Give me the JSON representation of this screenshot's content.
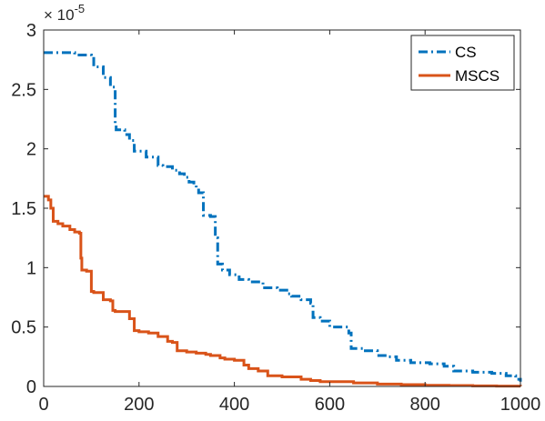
{
  "chart_data": {
    "type": "line",
    "title": "",
    "xlabel": "",
    "ylabel": "",
    "xlim": [
      0,
      1000
    ],
    "ylim": [
      0,
      3
    ],
    "y_exponent_base": "× 10",
    "y_exponent_power": "-5",
    "x_ticks": [
      0,
      200,
      400,
      600,
      800,
      1000
    ],
    "x_tick_labels": [
      "0",
      "200",
      "400",
      "600",
      "800",
      "1000"
    ],
    "y_ticks": [
      0,
      0.5,
      1,
      1.5,
      2,
      2.5,
      3
    ],
    "y_tick_labels": [
      "0",
      "0.5",
      "1",
      "1.5",
      "2",
      "2.5",
      "3"
    ],
    "grid": false,
    "legend_position": "top-right",
    "series": [
      {
        "name": "CS",
        "color": "#0072BD",
        "line_style": "dash-dot",
        "x": [
          0,
          30,
          65,
          100,
          105,
          125,
          140,
          150,
          152,
          170,
          180,
          190,
          215,
          240,
          250,
          270,
          285,
          295,
          305,
          315,
          320,
          325,
          335,
          350,
          360,
          365,
          375,
          390,
          410,
          430,
          460,
          490,
          510,
          520,
          540,
          560,
          565,
          580,
          600,
          640,
          645,
          670,
          700,
          720,
          740,
          770,
          810,
          840,
          860,
          900,
          940,
          970,
          990,
          1000
        ],
        "y": [
          2.81,
          2.81,
          2.79,
          2.78,
          2.69,
          2.6,
          2.52,
          2.2,
          2.16,
          2.12,
          2.07,
          1.98,
          1.93,
          1.86,
          1.85,
          1.82,
          1.79,
          1.76,
          1.72,
          1.7,
          1.67,
          1.63,
          1.44,
          1.43,
          1.25,
          1.03,
          0.98,
          0.94,
          0.9,
          0.88,
          0.83,
          0.81,
          0.78,
          0.76,
          0.73,
          0.7,
          0.58,
          0.55,
          0.5,
          0.45,
          0.32,
          0.3,
          0.26,
          0.25,
          0.22,
          0.2,
          0.19,
          0.17,
          0.13,
          0.12,
          0.11,
          0.09,
          0.06,
          0.04
        ]
      },
      {
        "name": "MSCS",
        "color": "#D95319",
        "line_style": "solid",
        "x": [
          0,
          5,
          10,
          15,
          20,
          30,
          40,
          55,
          65,
          75,
          78,
          80,
          90,
          100,
          105,
          125,
          140,
          145,
          150,
          180,
          190,
          200,
          220,
          240,
          260,
          270,
          280,
          300,
          320,
          340,
          350,
          360,
          370,
          380,
          400,
          420,
          430,
          450,
          470,
          500,
          540,
          560,
          580,
          600,
          650,
          700,
          750,
          800,
          850,
          900,
          950,
          1000
        ],
        "y": [
          1.6,
          1.6,
          1.57,
          1.5,
          1.39,
          1.37,
          1.35,
          1.32,
          1.3,
          1.29,
          1.08,
          0.98,
          0.97,
          0.8,
          0.79,
          0.73,
          0.72,
          0.64,
          0.63,
          0.57,
          0.47,
          0.46,
          0.45,
          0.42,
          0.38,
          0.37,
          0.3,
          0.29,
          0.28,
          0.27,
          0.26,
          0.26,
          0.24,
          0.23,
          0.22,
          0.18,
          0.15,
          0.13,
          0.09,
          0.08,
          0.06,
          0.05,
          0.04,
          0.04,
          0.03,
          0.02,
          0.015,
          0.01,
          0.008,
          0.005,
          0.003,
          0.002
        ]
      }
    ]
  }
}
